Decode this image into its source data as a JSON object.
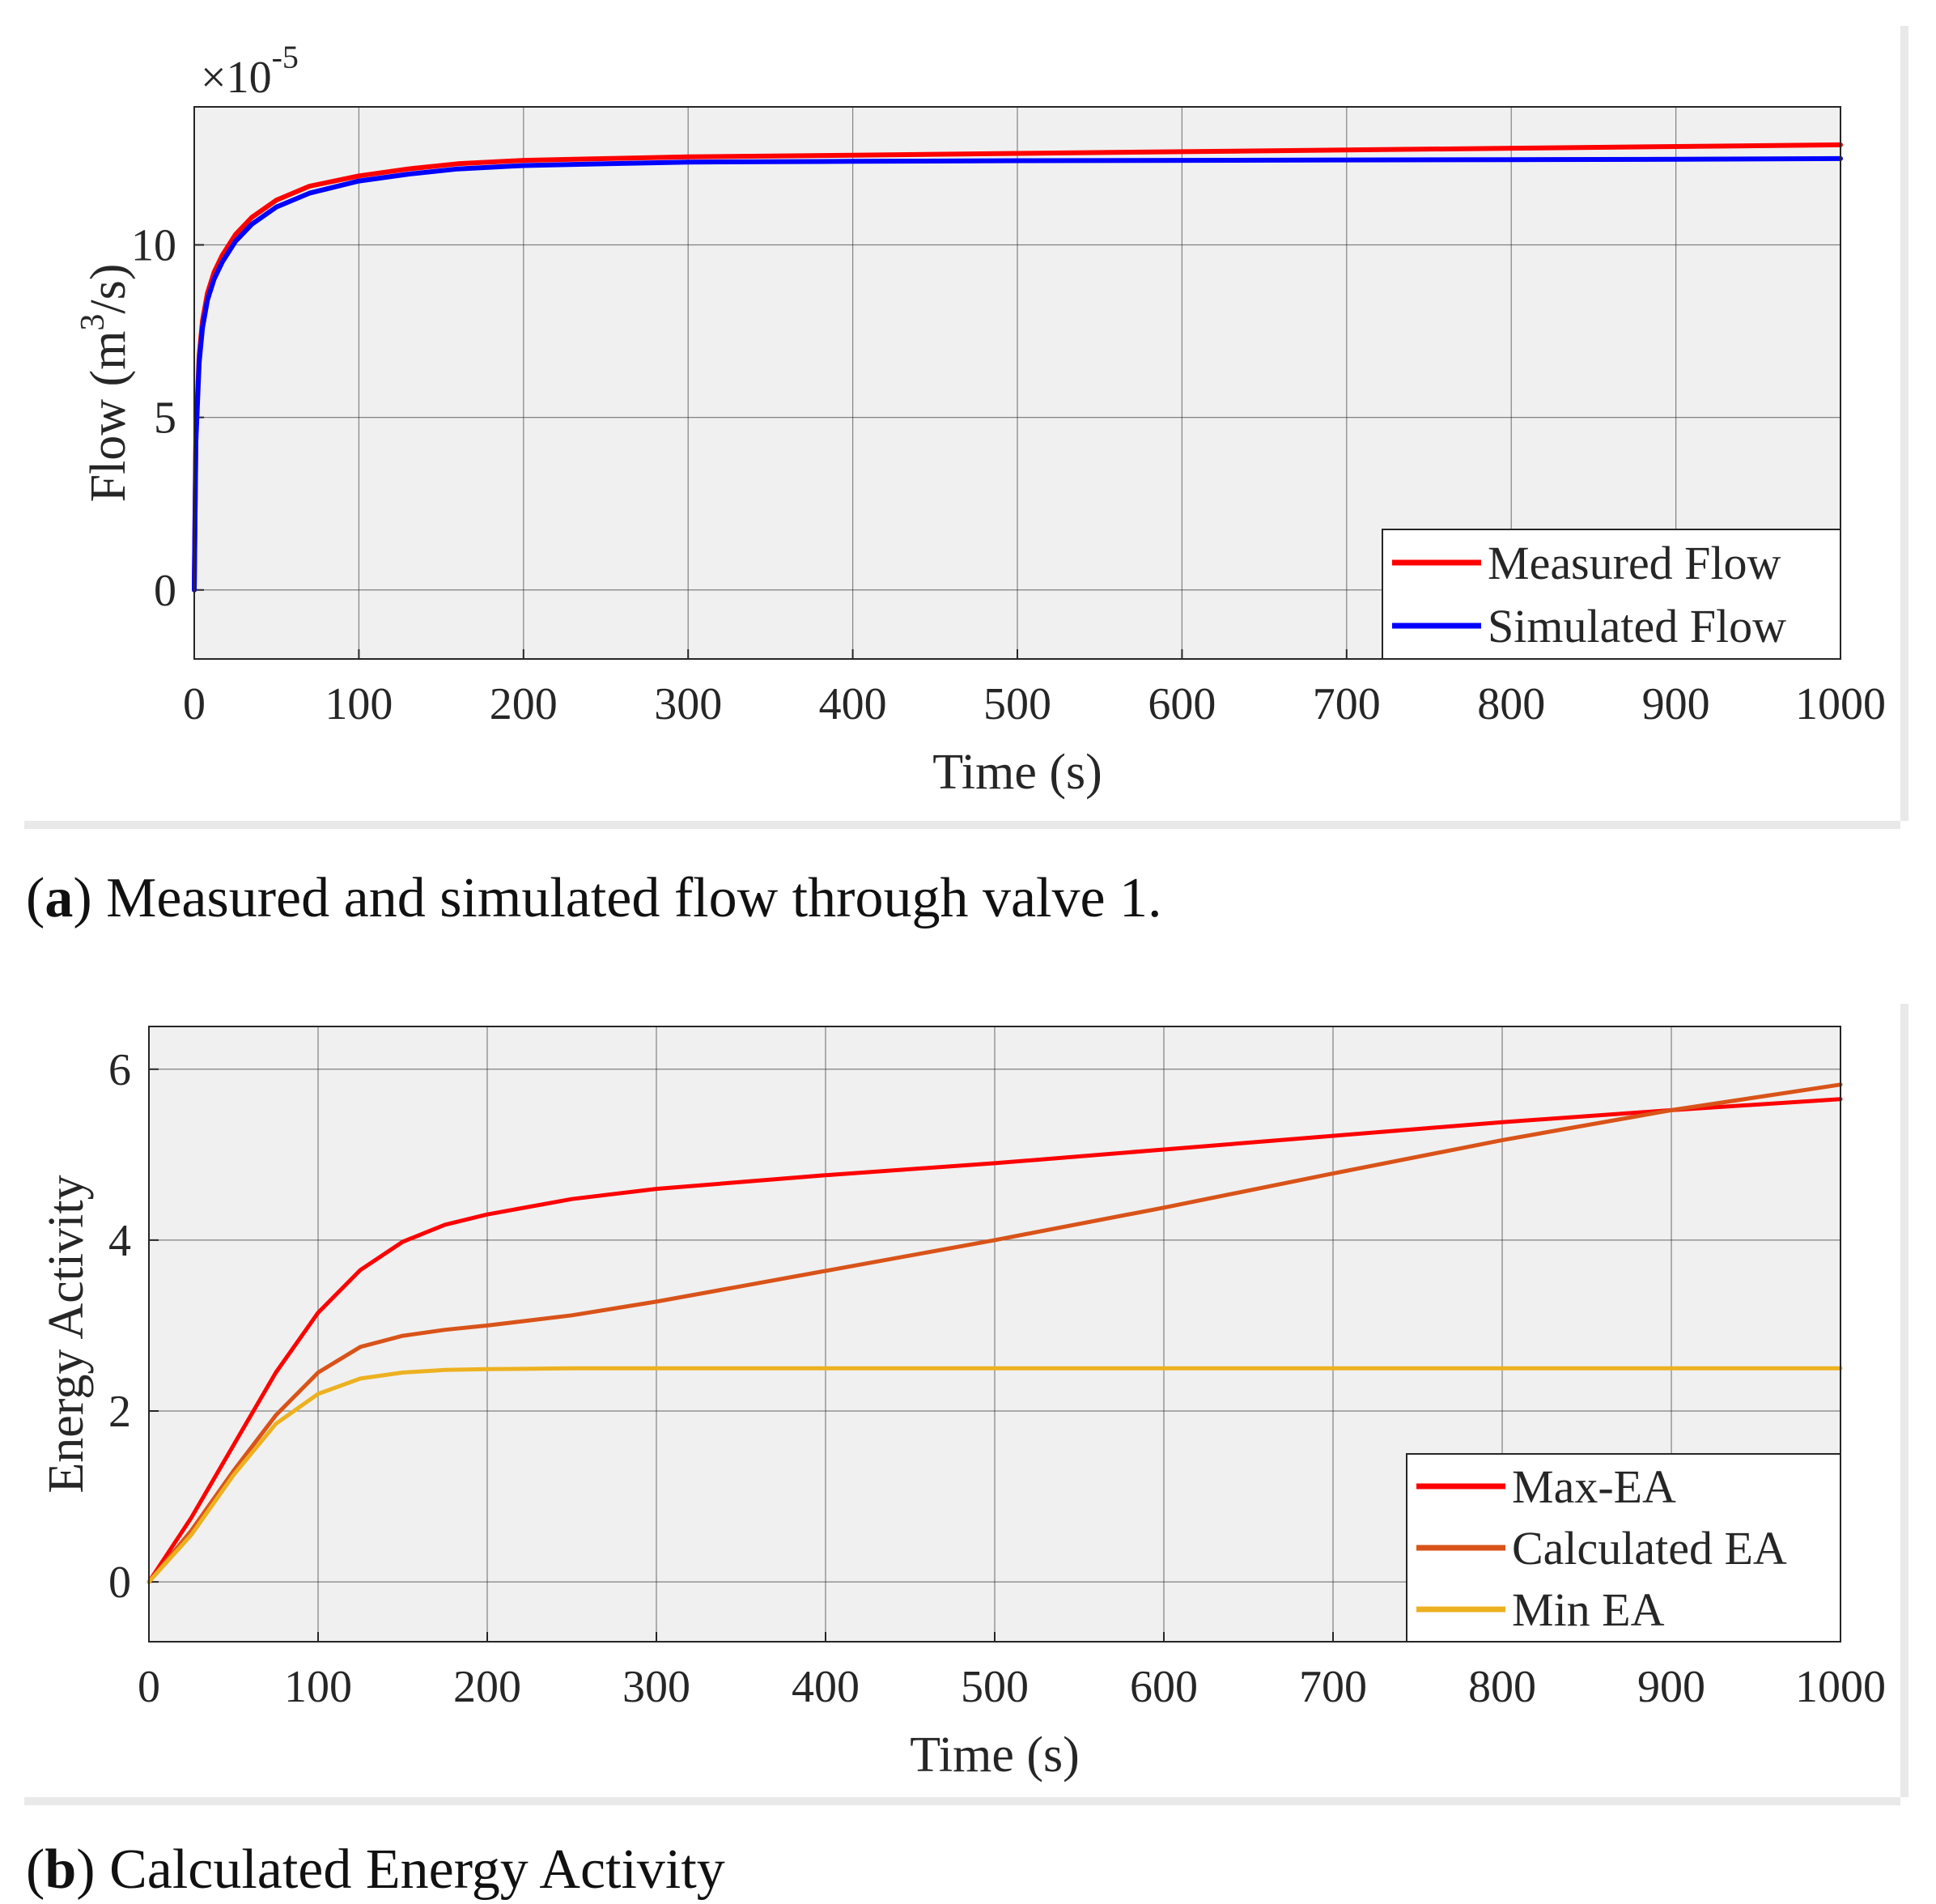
{
  "figure_a": {
    "caption_letter": "a",
    "caption_text": "Measured and simulated flow through valve 1."
  },
  "figure_b": {
    "caption_letter": "b",
    "caption_text": "Calculated Energy Activity"
  },
  "chart_data": [
    {
      "type": "line",
      "title": "",
      "xlabel": "Time (s)",
      "ylabel": "Flow (m^3/s)",
      "ylabel_parts": {
        "pre": "Flow (m",
        "sup": "3",
        "post": "/s)"
      },
      "exponent_label": {
        "base": "×10",
        "sup": "-5"
      },
      "xlim": [
        0,
        1000
      ],
      "ylim": [
        -2,
        14
      ],
      "xticks": [
        0,
        100,
        200,
        300,
        400,
        500,
        600,
        700,
        800,
        900,
        1000
      ],
      "yticks": [
        0,
        5,
        10
      ],
      "xtick_labels": [
        "0",
        "100",
        "200",
        "300",
        "400",
        "500",
        "600",
        "700",
        "800",
        "900",
        "1000"
      ],
      "ytick_labels": [
        "0",
        "5",
        "10"
      ],
      "grid": true,
      "legend_position": "bottom-right",
      "series": [
        {
          "name": "Measured Flow",
          "color": "#ff0000",
          "x": [
            0,
            1,
            3,
            5,
            8,
            12,
            17,
            25,
            35,
            50,
            70,
            100,
            130,
            160,
            200,
            250,
            300,
            400,
            500,
            600,
            700,
            800,
            900,
            1000
          ],
          "y": [
            0,
            4.5,
            6.8,
            7.8,
            8.6,
            9.2,
            9.7,
            10.3,
            10.8,
            11.3,
            11.7,
            12.0,
            12.2,
            12.35,
            12.45,
            12.5,
            12.55,
            12.6,
            12.65,
            12.7,
            12.75,
            12.8,
            12.85,
            12.9
          ]
        },
        {
          "name": "Simulated Flow",
          "color": "#0000ff",
          "x": [
            0,
            1,
            3,
            5,
            8,
            12,
            17,
            25,
            35,
            50,
            70,
            100,
            130,
            160,
            200,
            250,
            300,
            400,
            500,
            600,
            700,
            800,
            900,
            1000
          ],
          "y": [
            0,
            4.3,
            6.6,
            7.6,
            8.4,
            9.0,
            9.5,
            10.1,
            10.6,
            11.1,
            11.5,
            11.85,
            12.05,
            12.2,
            12.3,
            12.35,
            12.4,
            12.42,
            12.44,
            12.45,
            12.46,
            12.47,
            12.48,
            12.5
          ]
        }
      ]
    },
    {
      "type": "line",
      "title": "",
      "xlabel": "Time (s)",
      "ylabel": "Energy Activity",
      "xlim": [
        0,
        1000
      ],
      "ylim": [
        -0.7,
        6.5
      ],
      "xticks": [
        0,
        100,
        200,
        300,
        400,
        500,
        600,
        700,
        800,
        900,
        1000
      ],
      "yticks": [
        0,
        2,
        4,
        6
      ],
      "xtick_labels": [
        "0",
        "100",
        "200",
        "300",
        "400",
        "500",
        "600",
        "700",
        "800",
        "900",
        "1000"
      ],
      "ytick_labels": [
        "0",
        "2",
        "4",
        "6"
      ],
      "grid": true,
      "legend_position": "bottom-right",
      "series": [
        {
          "name": "Max-EA",
          "color": "#ff0000",
          "x": [
            0,
            25,
            50,
            75,
            100,
            125,
            150,
            175,
            200,
            250,
            300,
            400,
            500,
            600,
            700,
            800,
            900,
            1000
          ],
          "y": [
            0,
            0.75,
            1.6,
            2.45,
            3.15,
            3.65,
            3.98,
            4.18,
            4.3,
            4.48,
            4.6,
            4.76,
            4.9,
            5.06,
            5.22,
            5.38,
            5.52,
            5.65
          ]
        },
        {
          "name": "Calculated EA",
          "color": "#d95319",
          "x": [
            0,
            25,
            50,
            75,
            100,
            125,
            150,
            175,
            200,
            250,
            300,
            350,
            400,
            500,
            600,
            700,
            800,
            900,
            1000
          ],
          "y": [
            0,
            0.6,
            1.3,
            1.95,
            2.45,
            2.75,
            2.88,
            2.95,
            3.0,
            3.12,
            3.28,
            3.46,
            3.64,
            4.0,
            4.38,
            4.78,
            5.17,
            5.52,
            5.82
          ]
        },
        {
          "name": "Min EA",
          "color": "#edb120",
          "x": [
            0,
            25,
            50,
            75,
            100,
            125,
            150,
            175,
            200,
            250,
            300,
            400,
            500,
            600,
            700,
            800,
            900,
            1000
          ],
          "y": [
            0,
            0.55,
            1.25,
            1.85,
            2.2,
            2.38,
            2.45,
            2.48,
            2.49,
            2.5,
            2.5,
            2.5,
            2.5,
            2.5,
            2.5,
            2.5,
            2.5,
            2.5
          ]
        }
      ]
    }
  ]
}
